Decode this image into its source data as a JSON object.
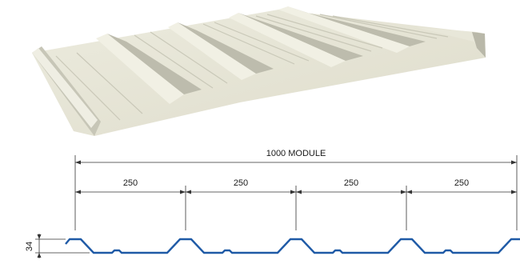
{
  "drawing": {
    "module_label": "1000 MODULE",
    "rib_spacing_labels": [
      "250",
      "250",
      "250",
      "250"
    ],
    "height_label": "34"
  },
  "colors": {
    "sheet_light": "#ecebdd",
    "sheet_shadow": "#b7b7a8",
    "sheet_mid": "#d6d5c6",
    "profile_stroke": "#1f5aa6",
    "dimension_lines": "#333333"
  },
  "image": {
    "depicts": "trapezoidal-roofing-sheet-3d-render"
  }
}
